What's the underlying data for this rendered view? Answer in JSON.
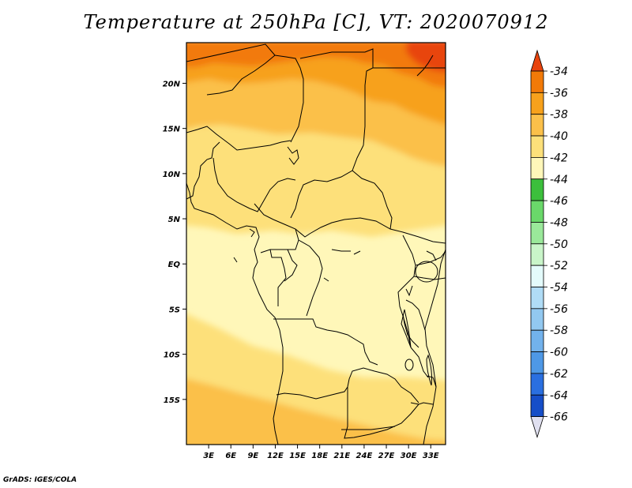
{
  "title": "Temperature at 250hPa [C], VT: 2020070912",
  "credit": "GrADS: IGES/COLA",
  "map": {
    "lat_labels": [
      "20N",
      "15N",
      "10N",
      "5N",
      "EQ",
      "5S",
      "10S",
      "15S"
    ],
    "lon_labels": [
      "3E",
      "6E",
      "9E",
      "12E",
      "15E",
      "18E",
      "21E",
      "24E",
      "27E",
      "30E",
      "33E"
    ],
    "lon_range": [
      0,
      35
    ],
    "lat_range": [
      -20,
      24.5
    ]
  },
  "colorbar": {
    "labels": [
      "-34",
      "-36",
      "-38",
      "-40",
      "-42",
      "-44",
      "-46",
      "-48",
      "-50",
      "-52",
      "-54",
      "-56",
      "-58",
      "-60",
      "-62",
      "-64",
      "-66"
    ],
    "colors": [
      "#e8440e",
      "#f27a08",
      "#f7a11c",
      "#fbc04a",
      "#fde07a",
      "#fff7b9",
      "#3cbf3c",
      "#6ad86a",
      "#9ae89a",
      "#c9f5c9",
      "#e4fbfb",
      "#b0dcf6",
      "#92c8f0",
      "#72b2ec",
      "#4e98e6",
      "#2a6fe0",
      "#164ec8",
      "#0a2a8f",
      "#0b146a",
      "#e0e0f0"
    ]
  }
}
